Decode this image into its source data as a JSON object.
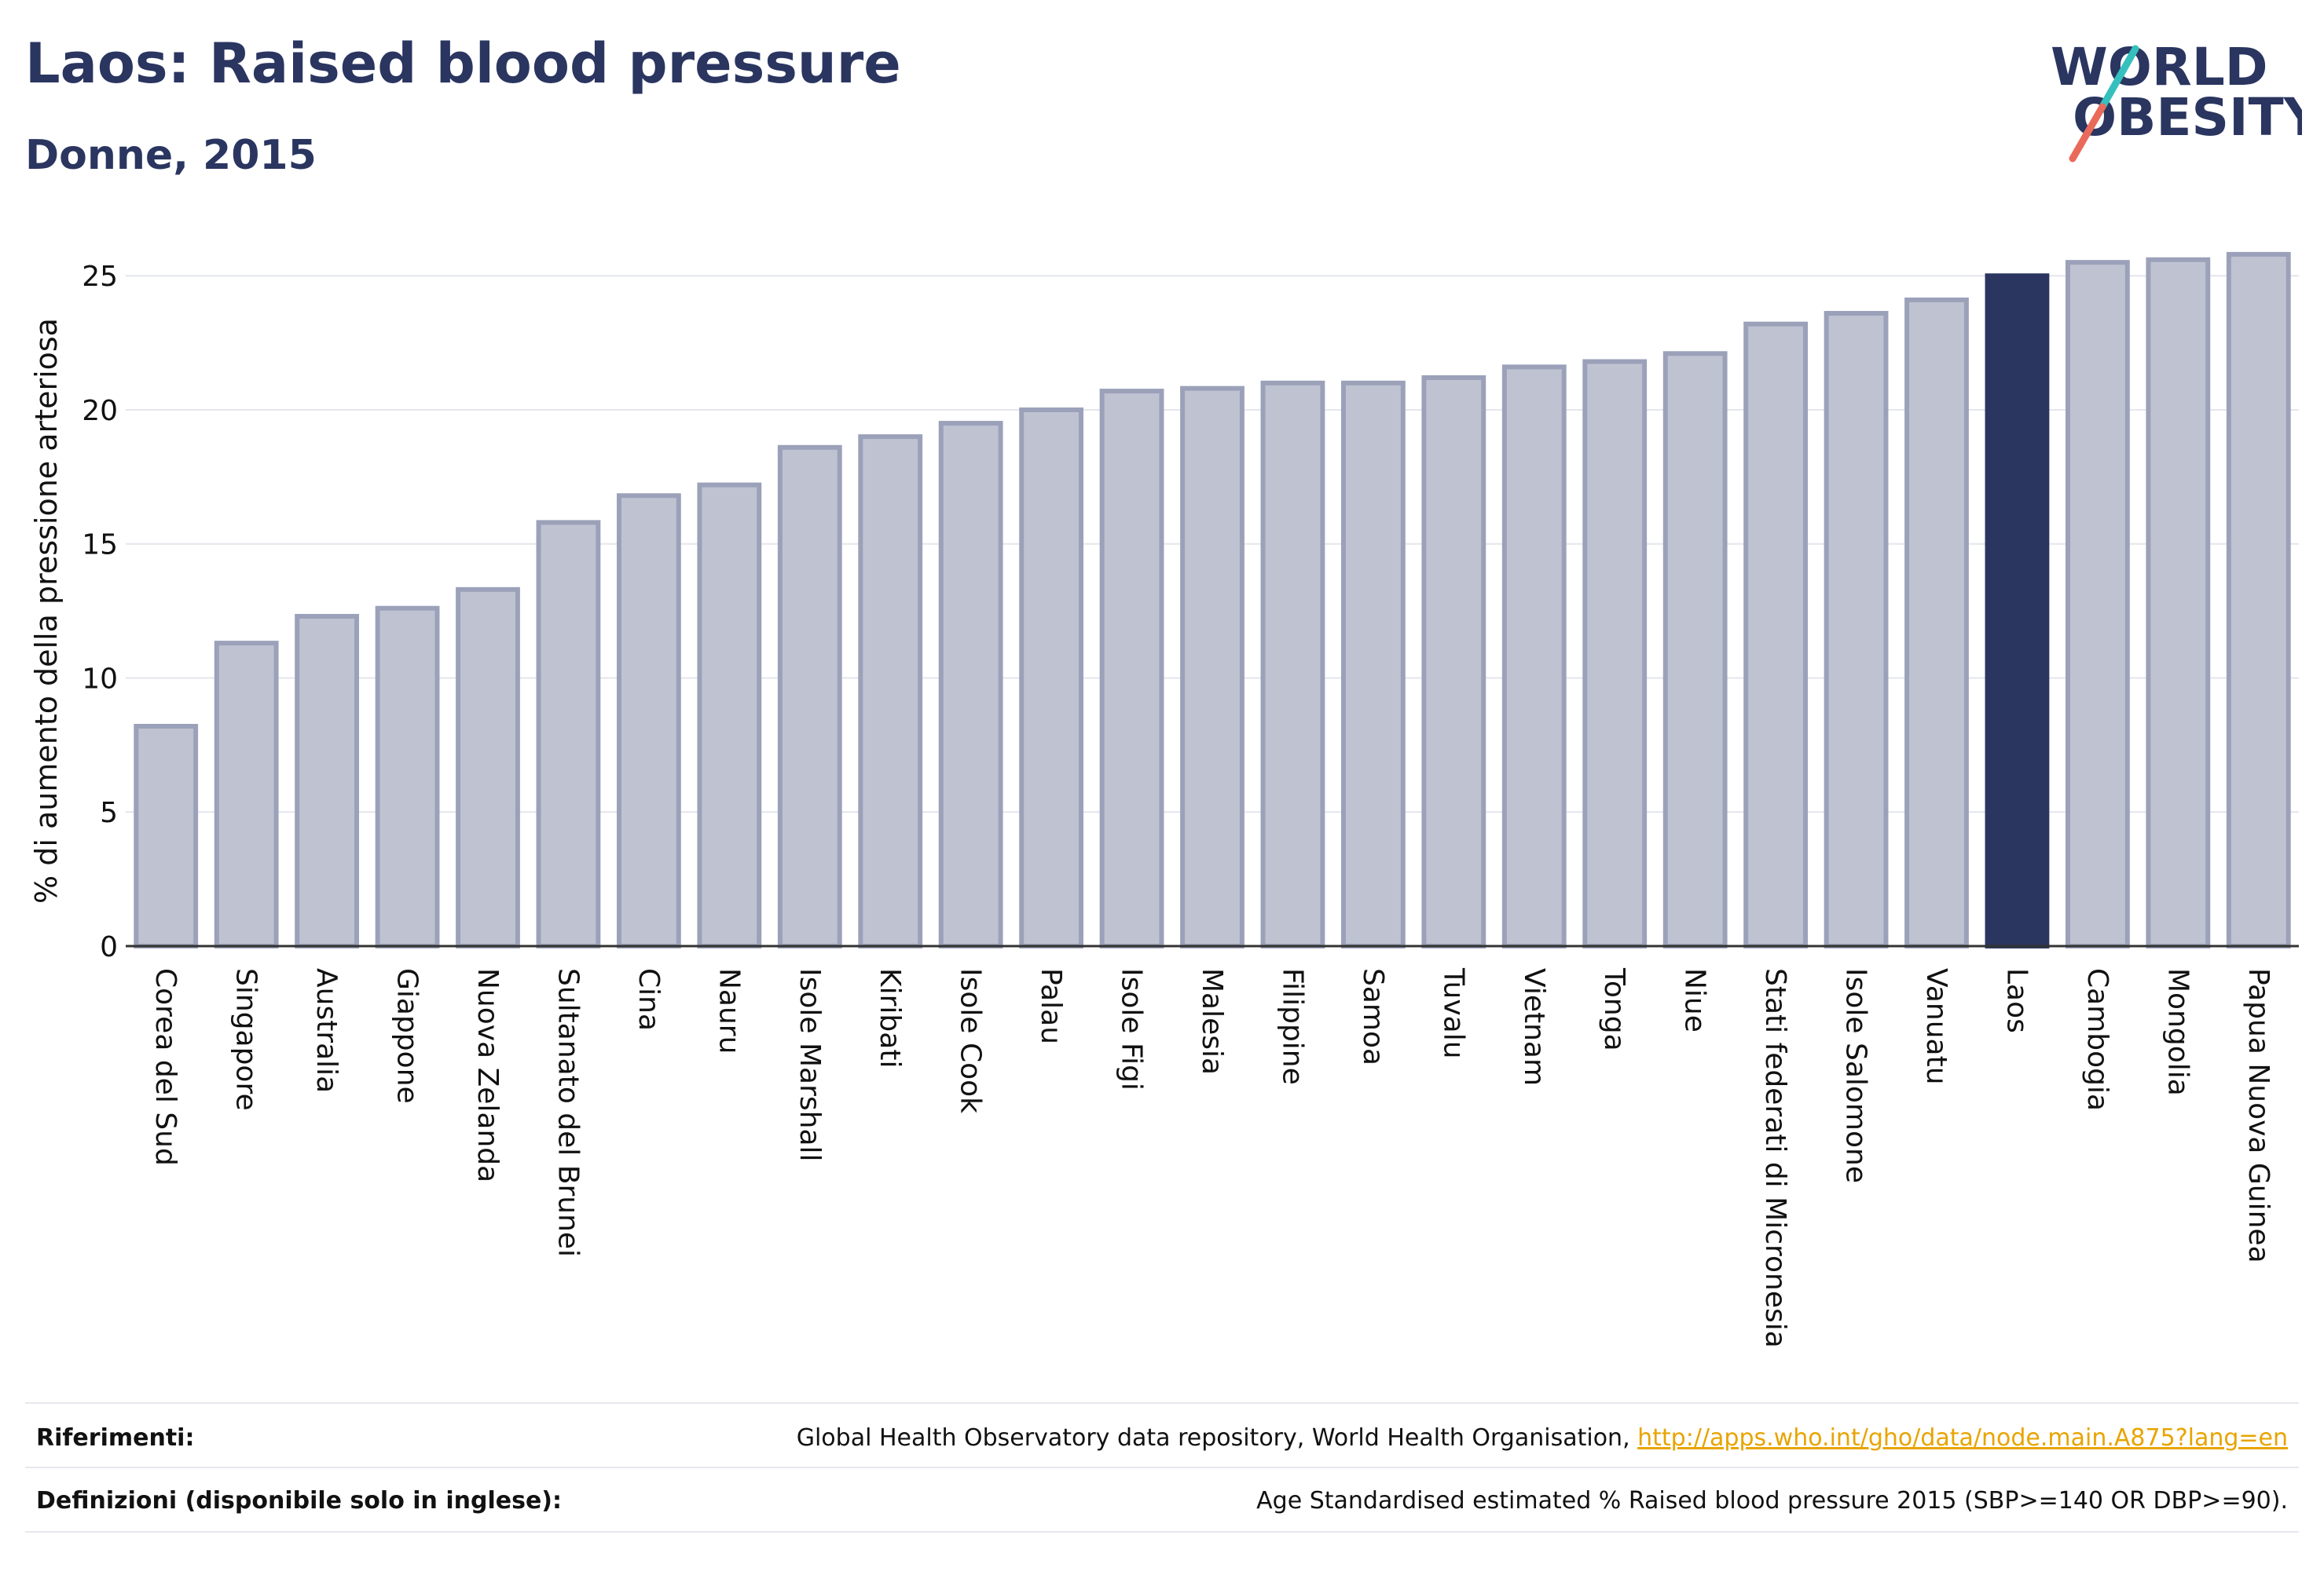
{
  "header": {
    "title": "Laos: Raised blood pressure",
    "subtitle": "Donne, 2015"
  },
  "logo": {
    "line1": "WORLD",
    "line2": "OBESITY",
    "accent_colors": [
      "#35c0bd",
      "#e96a5a"
    ]
  },
  "colors": {
    "bar_default": "#bfc3d1",
    "bar_default_stroke": "#9ba1b9",
    "bar_highlight": "#2a3560",
    "axis_text": "#111111"
  },
  "chart_data": {
    "type": "bar",
    "ylabel": "% di aumento della pressione arteriosa",
    "xlabel": "",
    "ylim": [
      0,
      26.5
    ],
    "yticks": [
      0,
      5,
      10,
      15,
      20,
      25
    ],
    "grid": true,
    "highlight": "Laos",
    "categories": [
      "Corea del Sud",
      "Singapore",
      "Australia",
      "Giappone",
      "Nuova Zelanda",
      "Sultanato del Brunei",
      "Cina",
      "Nauru",
      "Isole Marshall",
      "Kiribati",
      "Isole Cook",
      "Palau",
      "Isole Figi",
      "Malesia",
      "Filippine",
      "Samoa",
      "Tuvalu",
      "Vietnam",
      "Tonga",
      "Niue",
      "Stati federati di Micronesia",
      "Isole Salomone",
      "Vanuatu",
      "Laos",
      "Cambogia",
      "Mongolia",
      "Papua Nuova Guinea"
    ],
    "values": [
      8.2,
      11.3,
      12.3,
      12.6,
      13.3,
      15.8,
      16.8,
      17.2,
      18.6,
      19.0,
      19.5,
      20.0,
      20.7,
      20.8,
      21.0,
      21.0,
      21.2,
      21.6,
      21.8,
      22.1,
      23.2,
      23.6,
      24.1,
      25.0,
      25.5,
      25.6,
      25.8
    ]
  },
  "footer": {
    "references_label": "Riferimenti:",
    "references_text": "Global Health Observatory data repository, World Health Organisation, ",
    "references_link": "http://apps.who.int/gho/data/node.main.A875?lang=en",
    "definitions_label": "Definizioni (disponibile solo in inglese):",
    "definitions_text": "Age Standardised estimated % Raised blood pressure 2015 (SBP>=140 OR DBP>=90)."
  }
}
